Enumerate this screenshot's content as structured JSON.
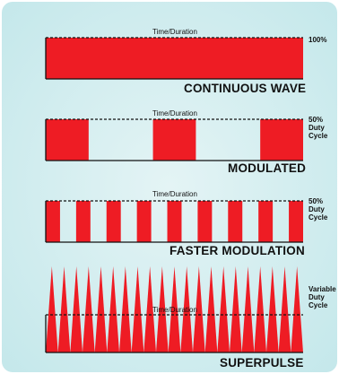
{
  "background": {
    "outer": "#ffffff",
    "panel_inner": "#e4f4f5",
    "panel_edge": "#c2e7ea"
  },
  "colors": {
    "pulse": "#ee1c24",
    "frame": "#111111"
  },
  "panels": [
    {
      "time_label": "Time/Duration",
      "side_label": [
        "100%"
      ],
      "name_label": "CONTINUOUS WAVE",
      "duty_fraction": 1.0,
      "pulse_count": 1,
      "shape": "continuous"
    },
    {
      "time_label": "Time/Duration",
      "side_label": [
        "50%",
        "Duty",
        "Cycle"
      ],
      "name_label": "MODULATED",
      "duty_fraction": 0.5,
      "pulse_count": 3,
      "shape": "square"
    },
    {
      "time_label": "Time/Duration",
      "side_label": [
        "50%",
        "Duty",
        "Cycle"
      ],
      "name_label": "FASTER MODULATION",
      "duty_fraction": 0.5,
      "pulse_count": 9,
      "shape": "square"
    },
    {
      "time_label": "Time/Duration",
      "side_label": [
        "Variable",
        "Duty",
        "Cycle"
      ],
      "name_label": "SUPERPULSE",
      "pulse_count": 21,
      "shape": "spike"
    }
  ]
}
